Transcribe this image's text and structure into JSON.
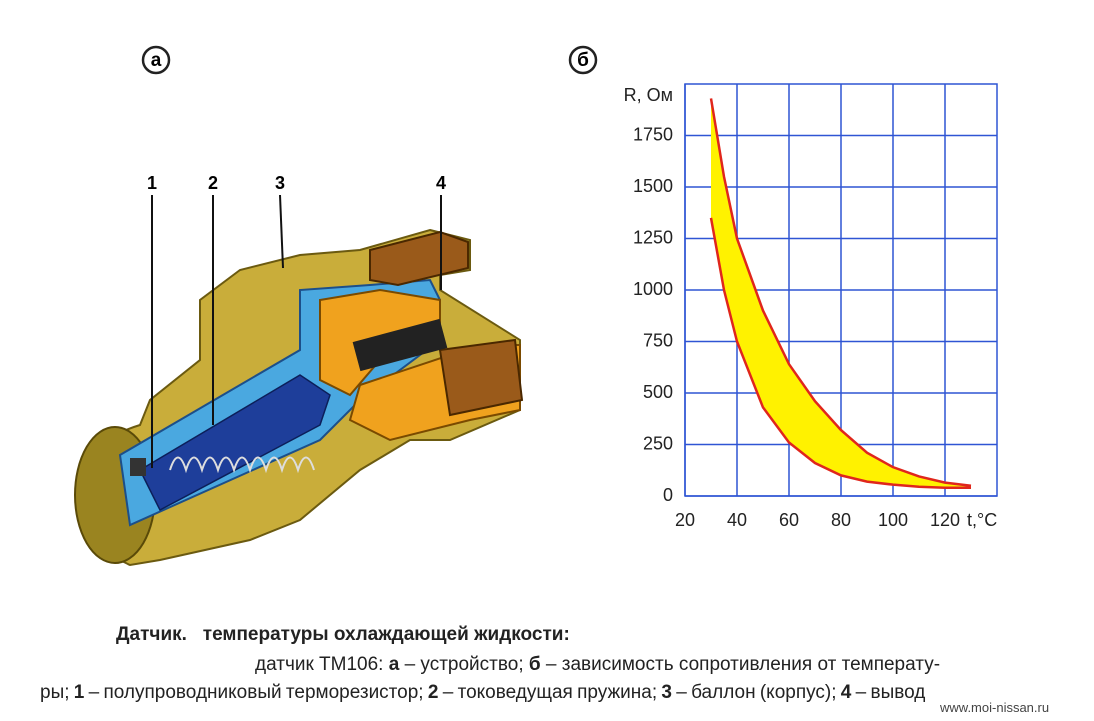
{
  "figure": {
    "label_a": "а",
    "label_b": "б",
    "parts": [
      "1",
      "2",
      "3",
      "4"
    ]
  },
  "chart_data": {
    "type": "band",
    "x_label": "t,°C",
    "y_label": "R, Ом",
    "x": [
      30,
      35,
      40,
      50,
      60,
      70,
      80,
      90,
      100,
      110,
      120,
      130
    ],
    "series": [
      {
        "color": "#e0261c",
        "values": [
          1930,
          1550,
          1250,
          900,
          640,
          460,
          320,
          210,
          140,
          95,
          65,
          50
        ]
      },
      {
        "color": "#e0261c",
        "values": [
          1350,
          1000,
          750,
          430,
          260,
          160,
          100,
          70,
          55,
          45,
          40,
          40
        ]
      }
    ],
    "fill_color": "#fff200",
    "xlim": [
      20,
      140
    ],
    "xticks": [
      20,
      40,
      60,
      80,
      100,
      120
    ],
    "ylim": [
      0,
      2000
    ],
    "yticks": [
      0,
      250,
      500,
      750,
      1000,
      1250,
      1500,
      1750
    ],
    "grid": true,
    "grid_color": "#2f55d4"
  },
  "caption": {
    "title": [
      "Датчик.",
      "температуры охлаждающей жидкости:"
    ],
    "line2": [
      "датчик ТМ106: ",
      "а",
      " – устройство; ",
      "б",
      " – зависимость сопротивления от температу-"
    ],
    "line3": [
      "ры; ",
      "1",
      " – полупроводниковый терморезистор; ",
      "2",
      " – токоведущая пружина; ",
      "3",
      " – баллон (корпус); ",
      "4",
      " – вывод"
    ]
  },
  "watermark": "www.moi-nissan.ru"
}
